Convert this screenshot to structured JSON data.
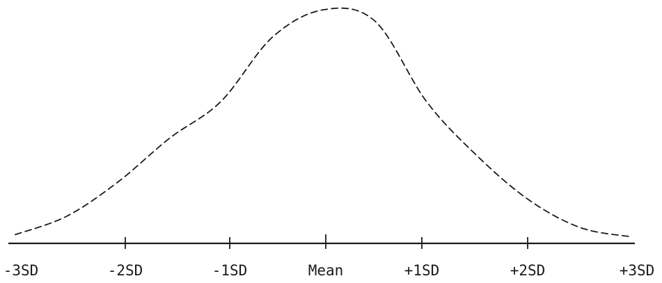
{
  "chart_data": {
    "type": "line",
    "title": "",
    "xlabel": "",
    "ylabel": "",
    "categories": [
      "-3SD",
      "-2SD",
      "-1SD",
      "Mean",
      "+1SD",
      "+2SD",
      "+3SD"
    ],
    "xlim": [
      -3,
      3
    ],
    "ylim": [
      0,
      1
    ],
    "grid": false,
    "legend": "none",
    "line_style": "dashed",
    "series": [
      {
        "x": [
          -3.0,
          -2.5,
          -2.0,
          -1.5,
          -1.0,
          -0.5,
          0.0,
          0.5,
          1.0,
          1.5,
          2.0,
          2.5,
          3.0
        ],
        "values": [
          0.02,
          0.1,
          0.25,
          0.44,
          0.6,
          0.88,
          1.0,
          0.95,
          0.6,
          0.36,
          0.17,
          0.05,
          0.01
        ]
      }
    ],
    "colors": {
      "ink": "#1a1a1a",
      "background": "#ffffff"
    }
  }
}
